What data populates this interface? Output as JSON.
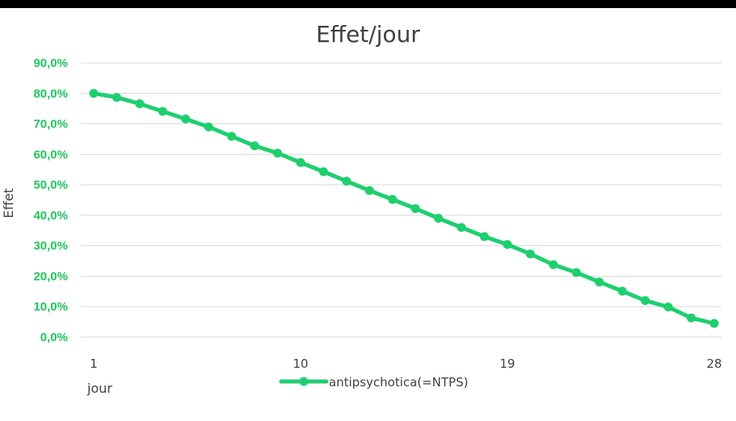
{
  "chart_data": {
    "type": "line",
    "title": "Effet/jour",
    "xlabel": "jour",
    "ylabel": "Effet",
    "x": [
      1,
      2,
      3,
      4,
      5,
      6,
      7,
      8,
      9,
      10,
      11,
      12,
      13,
      14,
      15,
      16,
      17,
      18,
      19,
      20,
      21,
      22,
      23,
      24,
      25,
      26,
      27,
      28
    ],
    "x_ticks": [
      {
        "value": 1,
        "label": "1"
      },
      {
        "value": 10,
        "label": "10"
      },
      {
        "value": 19,
        "label": "19"
      },
      {
        "value": 28,
        "label": "28"
      }
    ],
    "y_ticks": [
      {
        "value": 0.0,
        "label": "0,0%"
      },
      {
        "value": 0.1,
        "label": "10,0%"
      },
      {
        "value": 0.2,
        "label": "20,0%"
      },
      {
        "value": 0.3,
        "label": "30,0%"
      },
      {
        "value": 0.4,
        "label": "40,0%"
      },
      {
        "value": 0.5,
        "label": "50,0%"
      },
      {
        "value": 0.6,
        "label": "60,0%"
      },
      {
        "value": 0.7,
        "label": "70,0%"
      },
      {
        "value": 0.8,
        "label": "80,0%"
      },
      {
        "value": 0.9,
        "label": "90,0%"
      }
    ],
    "ylim": [
      0,
      0.9
    ],
    "grid": true,
    "legend_position": "bottom",
    "tick_color": "#22c55e",
    "series": [
      {
        "name": "antipsychotica(=NTPS)",
        "color": "#1fcf6e",
        "values": [
          0.8,
          0.787,
          0.766,
          0.741,
          0.716,
          0.69,
          0.659,
          0.628,
          0.604,
          0.573,
          0.543,
          0.512,
          0.481,
          0.452,
          0.422,
          0.39,
          0.36,
          0.33,
          0.304,
          0.273,
          0.238,
          0.212,
          0.181,
          0.151,
          0.12,
          0.099,
          0.063,
          0.045
        ]
      }
    ]
  }
}
